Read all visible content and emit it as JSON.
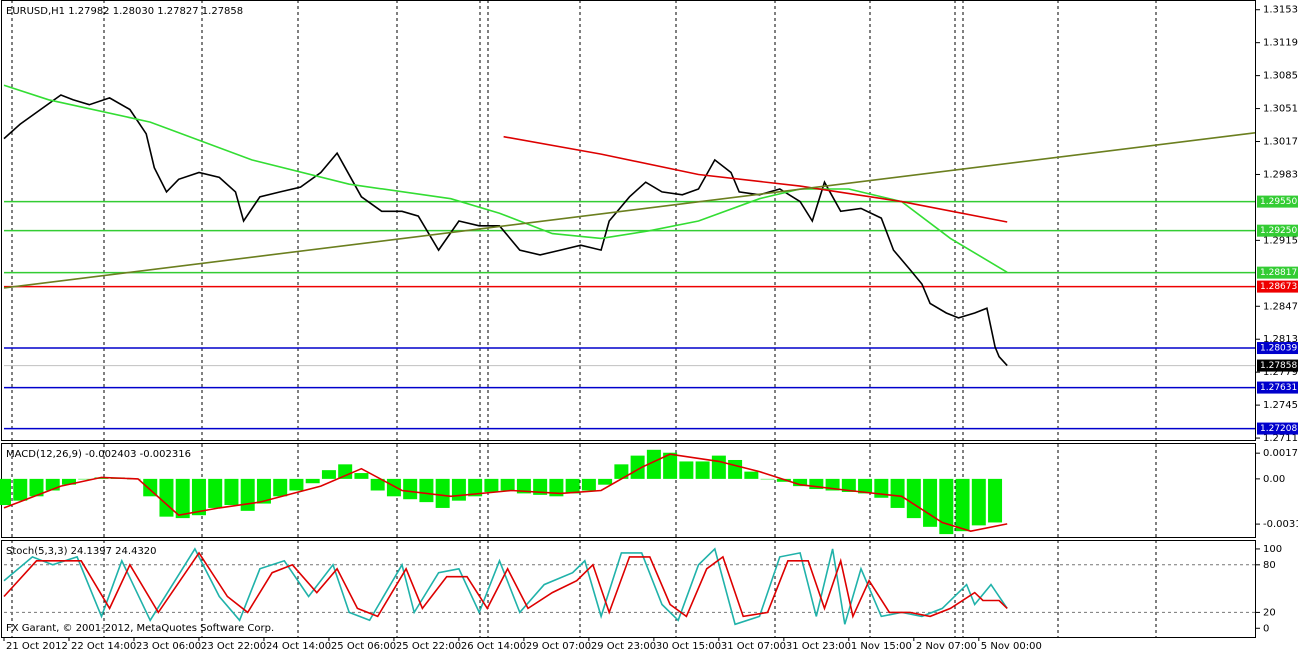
{
  "chart_data": [
    {
      "type": "line",
      "title": "EURUSD,H1  1.27982 1.28030 1.27827 1.27858",
      "xlim": [
        0,
        308
      ],
      "ylim": [
        1.2709,
        1.3162
      ],
      "xticks": [
        {
          "value": 0,
          "label": "21 Oct 2012"
        },
        {
          "value": 16,
          "label": "22 Oct 14:00"
        },
        {
          "value": 32,
          "label": "23 Oct 06:00"
        },
        {
          "value": 48,
          "label": "23 Oct 22:00"
        },
        {
          "value": 64,
          "label": "24 Oct 14:00"
        },
        {
          "value": 80,
          "label": "25 Oct 06:00"
        },
        {
          "value": 96,
          "label": "25 Oct 22:00"
        },
        {
          "value": 112,
          "label": "26 Oct 14:00"
        },
        {
          "value": 128,
          "label": "29 Oct 07:00"
        },
        {
          "value": 144,
          "label": "29 Oct 23:00"
        },
        {
          "value": 160,
          "label": "30 Oct 15:00"
        },
        {
          "value": 176,
          "label": "31 Oct 07:00"
        },
        {
          "value": 192,
          "label": "31 Oct 23:00"
        },
        {
          "value": 208,
          "label": "1 Nov 15:00"
        },
        {
          "value": 224,
          "label": "2 Nov 07:00"
        },
        {
          "value": 240,
          "label": "5 Nov 00:00"
        }
      ],
      "yticks": [
        {
          "value": 1.3153,
          "label": "1.31530"
        },
        {
          "value": 1.3119,
          "label": "1.31190"
        },
        {
          "value": 1.3085,
          "label": "1.30850"
        },
        {
          "value": 1.3051,
          "label": "1.30510"
        },
        {
          "value": 1.3017,
          "label": "1.30170"
        },
        {
          "value": 1.2983,
          "label": "1.29830"
        },
        {
          "value": 1.2915,
          "label": "1.29150"
        },
        {
          "value": 1.2847,
          "label": "1.28470"
        },
        {
          "value": 1.2813,
          "label": "1.28130"
        },
        {
          "value": 1.2779,
          "label": "1.27790"
        },
        {
          "value": 1.2745,
          "label": "1.27450"
        },
        {
          "value": 1.2711,
          "label": "1.27110"
        }
      ],
      "series": [
        {
          "color": "#000000",
          "x": [
            0,
            4,
            9,
            14,
            17,
            21,
            26,
            31,
            35,
            37,
            40,
            43,
            48,
            53,
            57,
            59,
            63,
            68,
            73,
            78,
            82,
            84,
            88,
            93,
            98,
            102,
            107,
            112,
            117,
            122,
            127,
            132,
            137,
            142,
            147,
            149,
            154,
            158,
            162,
            167,
            171,
            175,
            179,
            181,
            186,
            191,
            196,
            199,
            202,
            206,
            211,
            216,
            219,
            223,
            226,
            228,
            232,
            235,
            239,
            242,
            244,
            245,
            247
          ],
          "values": [
            1.302,
            1.3035,
            1.305,
            1.3065,
            1.306,
            1.3055,
            1.3062,
            1.305,
            1.3025,
            1.299,
            1.2965,
            1.2978,
            1.2985,
            1.298,
            1.2965,
            1.2935,
            1.296,
            1.2965,
            1.297,
            1.2985,
            1.3005,
            1.299,
            1.296,
            1.2945,
            1.2945,
            1.294,
            1.2905,
            1.2935,
            1.293,
            1.293,
            1.2905,
            1.29,
            1.2905,
            1.291,
            1.2905,
            1.2935,
            1.296,
            1.2975,
            1.2965,
            1.2962,
            1.2968,
            1.2998,
            1.2985,
            1.2965,
            1.2962,
            1.2968,
            1.2955,
            1.2935,
            1.2975,
            1.2945,
            1.2948,
            1.2938,
            1.2905,
            1.2885,
            1.287,
            1.285,
            1.284,
            1.2835,
            1.284,
            1.2845,
            1.2805,
            1.2795,
            1.27858
          ]
        },
        {
          "color": "#33dd33",
          "x": [
            0,
            11,
            36,
            61,
            85,
            110,
            122,
            135,
            147,
            159,
            171,
            186,
            196,
            208,
            221,
            233,
            247
          ],
          "values": [
            1.3075,
            1.306,
            1.3037,
            1.2998,
            1.2973,
            1.2958,
            1.2943,
            1.2922,
            1.2917,
            1.2925,
            1.2935,
            1.2958,
            1.2968,
            1.2968,
            1.2955,
            1.2917,
            1.2882
          ]
        },
        {
          "color": "#dd0000",
          "x": [
            123,
            147,
            171,
            196,
            221,
            247
          ],
          "values": [
            1.3022,
            1.3004,
            1.2983,
            1.2971,
            1.2955,
            1.2934
          ]
        },
        {
          "color": "#6b7f1f",
          "x": [
            0,
            308
          ],
          "values": [
            1.2866,
            1.3026
          ]
        }
      ],
      "hlines": [
        {
          "value": 1.2955,
          "label": "1.29550",
          "color": "#33cc33"
        },
        {
          "value": 1.2925,
          "label": "1.29250",
          "color": "#33cc33"
        },
        {
          "value": 1.28817,
          "color": "#33cc33"
        },
        {
          "value": 1.28673,
          "color": "#ee0000"
        },
        {
          "value": 1.28039,
          "color": "#0000cc"
        },
        {
          "value": 1.27631,
          "color": "#0000cc"
        },
        {
          "value": 1.27208,
          "color": "#0000cc"
        }
      ],
      "last_price": 1.27858
    },
    {
      "type": "bar",
      "title": "MACD(12,26,9) -0.002403 -0.002316",
      "xlim": [
        0,
        308
      ],
      "ylim": [
        -0.004,
        0.0024
      ],
      "yticks": [
        0.001769,
        {
          "value": 0,
          "label": "0.00"
        },
        -0.003112
      ],
      "series": [
        {
          "type": "bar",
          "color": "#00ee00",
          "x": [
            0,
            4,
            8,
            12,
            16,
            20,
            24,
            28,
            32,
            36,
            40,
            44,
            48,
            52,
            56,
            60,
            64,
            68,
            72,
            76,
            80,
            84,
            88,
            92,
            96,
            100,
            104,
            108,
            112,
            116,
            120,
            124,
            128,
            132,
            136,
            140,
            144,
            148,
            152,
            156,
            160,
            164,
            168,
            172,
            176,
            180,
            184,
            188,
            192,
            196,
            200,
            204,
            208,
            212,
            216,
            220,
            224,
            228,
            232,
            236,
            240,
            244
          ],
          "values": [
            -0.0018,
            -0.0015,
            -0.0012,
            -0.0008,
            -0.0004,
            0.0,
            0.0001,
            0.0001,
            0.0,
            -0.0012,
            -0.0026,
            -0.0027,
            -0.0025,
            -0.002,
            -0.0018,
            -0.0022,
            -0.0017,
            -0.0012,
            -0.0008,
            -0.0003,
            0.0006,
            0.001,
            0.0004,
            -0.0008,
            -0.0012,
            -0.0014,
            -0.0016,
            -0.002,
            -0.0015,
            -0.0012,
            -0.0009,
            -0.0008,
            -0.001,
            -0.0011,
            -0.0012,
            -0.001,
            -0.0008,
            -0.0004,
            0.001,
            0.0016,
            0.002,
            0.0018,
            0.0012,
            0.0012,
            0.0016,
            0.0013,
            0.0005,
            0.0,
            -0.0002,
            -0.0005,
            -0.0007,
            -0.0008,
            -0.0009,
            -0.001,
            -0.0013,
            -0.002,
            -0.0027,
            -0.0033,
            -0.0038,
            -0.0036,
            -0.0032,
            -0.003
          ]
        },
        {
          "type": "line",
          "color": "#dd0000",
          "x": [
            0,
            14,
            24,
            33,
            43,
            53,
            63,
            78,
            88,
            98,
            110,
            125,
            137,
            147,
            157,
            164,
            176,
            186,
            196,
            208,
            221,
            231,
            238,
            247
          ],
          "values": [
            -0.002,
            -0.0005,
            0.0001,
            0.0,
            -0.0025,
            -0.002,
            -0.0016,
            -0.0005,
            0.0007,
            -0.0008,
            -0.0012,
            -0.0008,
            -0.001,
            -0.0008,
            0.0008,
            0.0017,
            0.0012,
            0.0005,
            -0.0004,
            -0.0008,
            -0.0012,
            -0.003,
            -0.0036,
            -0.0031
          ]
        }
      ]
    },
    {
      "type": "line",
      "title": "Stoch(5,3,3) 24.1397 24.4320",
      "annotation": "FX Garant, © 2001-2012, MetaQuotes Software Corp.",
      "xlim": [
        0,
        308
      ],
      "ylim": [
        -11,
        110
      ],
      "yticks": [
        100,
        80,
        20,
        0
      ],
      "levels": [
        80,
        20
      ],
      "series": [
        {
          "color": "#20b2aa",
          "x": [
            0,
            7,
            12,
            18,
            24,
            29,
            36,
            47,
            53,
            58,
            63,
            69,
            75,
            81,
            85,
            90,
            98,
            101,
            107,
            112,
            117,
            122,
            127,
            133,
            140,
            143,
            147,
            152,
            157,
            162,
            166,
            171,
            175,
            180,
            186,
            191,
            196,
            200,
            204,
            207,
            211,
            216,
            221,
            226,
            231,
            237,
            239,
            243,
            247
          ],
          "values": [
            60,
            90,
            80,
            90,
            15,
            85,
            10,
            100,
            40,
            10,
            75,
            85,
            40,
            80,
            20,
            10,
            80,
            20,
            70,
            75,
            20,
            85,
            20,
            55,
            70,
            85,
            15,
            95,
            95,
            30,
            10,
            80,
            100,
            5,
            15,
            90,
            95,
            15,
            100,
            5,
            75,
            15,
            20,
            15,
            25,
            55,
            30,
            55,
            25
          ]
        },
        {
          "color": "#dd0000",
          "x": [
            0,
            8,
            14,
            19,
            26,
            31,
            38,
            48,
            55,
            60,
            66,
            71,
            77,
            82,
            87,
            92,
            99,
            103,
            109,
            114,
            119,
            124,
            129,
            135,
            141,
            145,
            149,
            154,
            159,
            164,
            168,
            173,
            177,
            182,
            188,
            193,
            198,
            202,
            206,
            209,
            213,
            218,
            223,
            228,
            233,
            239,
            241,
            245,
            247
          ],
          "values": [
            40,
            85,
            85,
            85,
            25,
            80,
            20,
            95,
            40,
            20,
            70,
            80,
            45,
            75,
            25,
            15,
            75,
            25,
            65,
            65,
            25,
            75,
            25,
            45,
            60,
            80,
            20,
            90,
            90,
            30,
            15,
            75,
            90,
            15,
            20,
            85,
            85,
            25,
            85,
            15,
            60,
            20,
            20,
            15,
            25,
            45,
            35,
            35,
            25
          ]
        }
      ]
    }
  ]
}
